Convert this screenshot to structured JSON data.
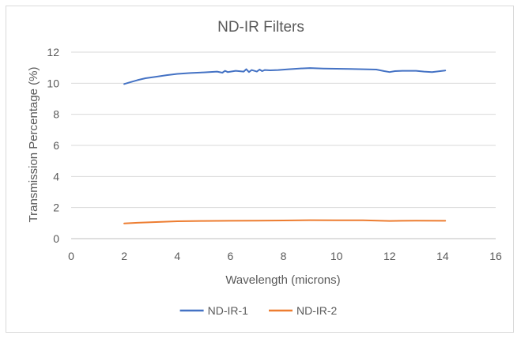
{
  "chart_data": {
    "type": "line",
    "title": "ND-IR Filters",
    "xlabel": "Wavelength (microns)",
    "ylabel": "Transmission Percentage (%)",
    "xlim": [
      0,
      16
    ],
    "ylim": [
      0,
      12
    ],
    "xticks": [
      0,
      2,
      4,
      6,
      8,
      10,
      12,
      14,
      16
    ],
    "yticks": [
      0,
      2,
      4,
      6,
      8,
      10,
      12
    ],
    "grid": "horizontal",
    "legend_position": "bottom",
    "series": [
      {
        "name": "ND-IR-1",
        "color": "#4472c4",
        "x": [
          2.0,
          2.2,
          2.5,
          2.8,
          3.2,
          3.6,
          4.0,
          4.5,
          5.0,
          5.5,
          5.7,
          5.8,
          5.9,
          6.2,
          6.5,
          6.6,
          6.7,
          6.8,
          7.0,
          7.1,
          7.2,
          7.3,
          7.5,
          7.8,
          8.2,
          8.6,
          9.0,
          9.5,
          10.0,
          10.5,
          11.0,
          11.5,
          11.8,
          12.0,
          12.2,
          12.5,
          13.0,
          13.3,
          13.6,
          14.0,
          14.1
        ],
        "y": [
          9.95,
          10.05,
          10.2,
          10.32,
          10.42,
          10.52,
          10.6,
          10.66,
          10.7,
          10.75,
          10.68,
          10.8,
          10.72,
          10.8,
          10.75,
          10.9,
          10.72,
          10.85,
          10.75,
          10.88,
          10.78,
          10.85,
          10.83,
          10.85,
          10.9,
          10.95,
          10.98,
          10.95,
          10.93,
          10.92,
          10.9,
          10.88,
          10.78,
          10.72,
          10.78,
          10.8,
          10.8,
          10.75,
          10.72,
          10.8,
          10.82
        ]
      },
      {
        "name": "ND-IR-2",
        "color": "#ed7d31",
        "x": [
          2.0,
          2.5,
          3.0,
          3.5,
          4.0,
          5.0,
          6.0,
          7.0,
          8.0,
          9.0,
          10.0,
          11.0,
          12.0,
          12.5,
          13.0,
          14.0,
          14.1
        ],
        "y": [
          0.98,
          1.02,
          1.06,
          1.09,
          1.12,
          1.14,
          1.15,
          1.16,
          1.17,
          1.19,
          1.18,
          1.18,
          1.14,
          1.15,
          1.16,
          1.15,
          1.15
        ]
      }
    ]
  }
}
